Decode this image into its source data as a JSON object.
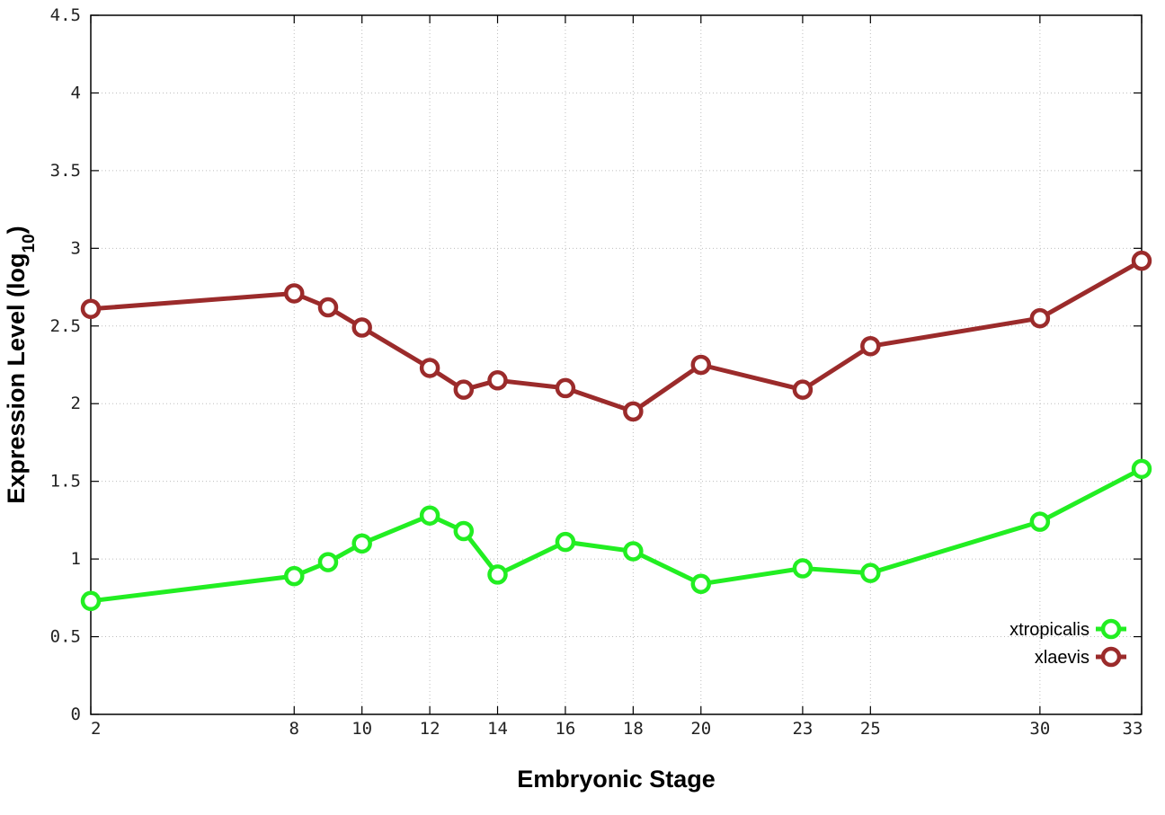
{
  "chart_data": {
    "type": "line",
    "title": "",
    "xlabel": "Embryonic Stage",
    "ylabel_main": "Expression Level (log",
    "ylabel_sub": "10",
    "ylabel_close": ")",
    "x": [
      2,
      8,
      9,
      10,
      12,
      13,
      14,
      16,
      18,
      20,
      23,
      25,
      30,
      33
    ],
    "x_tick_values": [
      2,
      8,
      10,
      12,
      14,
      16,
      18,
      20,
      23,
      25,
      30,
      33
    ],
    "x_tick_labels": [
      "2",
      "8",
      "10",
      "12",
      "14",
      "16",
      "18",
      "20",
      "23",
      "25",
      "30",
      "33"
    ],
    "xlim": [
      2,
      33
    ],
    "y_tick_values": [
      0,
      0.5,
      1,
      1.5,
      2,
      2.5,
      3,
      3.5,
      4,
      4.5
    ],
    "y_tick_labels": [
      "0",
      "0.5",
      "1",
      "1.5",
      "2",
      "2.5",
      "3",
      "3.5",
      "4",
      "4.5"
    ],
    "ylim": [
      0,
      4.5
    ],
    "grid": true,
    "legend_position": "bottom-right",
    "series": [
      {
        "name": "xtropicalis",
        "color": "#22ee22",
        "values": [
          0.73,
          0.89,
          0.98,
          1.1,
          1.28,
          1.18,
          0.9,
          1.11,
          1.05,
          0.84,
          0.94,
          0.91,
          1.24,
          1.58
        ]
      },
      {
        "name": "xlaevis",
        "color": "#9b2b2b",
        "values": [
          2.61,
          2.71,
          2.62,
          2.49,
          2.23,
          2.09,
          2.15,
          2.1,
          1.95,
          2.25,
          2.09,
          2.37,
          2.55,
          2.92
        ]
      }
    ]
  }
}
